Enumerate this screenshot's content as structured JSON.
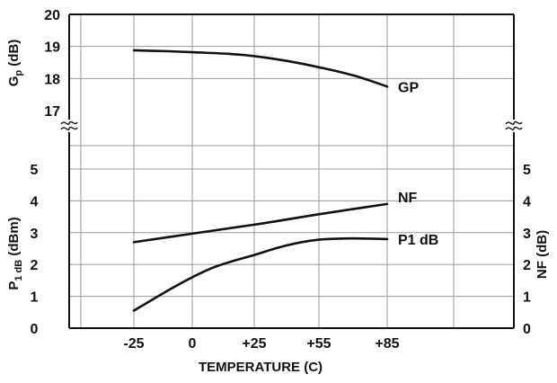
{
  "chart_data": {
    "type": "line",
    "x": [
      "-25",
      "0",
      "+25",
      "+55",
      "+85"
    ],
    "x_values": [
      -25,
      0,
      25,
      55,
      85
    ],
    "xlabel": "TEMPERATURE (C)",
    "grid": true,
    "panels": [
      {
        "id": "gain",
        "ylabel": "G_p (dB)",
        "ylabel_main": "G",
        "ylabel_sub": "p",
        "ylabel_rest": " (dB)",
        "ylim": [
          17,
          20
        ],
        "yticks": [
          "20",
          "19",
          "18",
          "17"
        ],
        "axis_break": true,
        "series": [
          {
            "name": "GP",
            "x": [
              -25,
              -10,
              0,
              15,
              25,
              40,
              55,
              70,
              85
            ],
            "y": [
              18.88,
              18.85,
              18.82,
              18.77,
              18.7,
              18.55,
              18.35,
              18.1,
              17.75
            ]
          }
        ]
      },
      {
        "id": "power-noise",
        "ylabel_left": "P_1dB (dBm)",
        "ylabel_left_main": "P",
        "ylabel_left_sub": "1 dB",
        "ylabel_left_rest": " (dBm)",
        "ylabel_right": "NF (dB)",
        "ylim": [
          0,
          5
        ],
        "yticks_left": [
          "0",
          "1",
          "2",
          "3",
          "4",
          "5"
        ],
        "yticks_right": [
          "0",
          "1",
          "2",
          "3",
          "4",
          "5"
        ],
        "series": [
          {
            "name": "NF",
            "axis": "right",
            "x": [
              -25,
              0,
              25,
              55,
              85
            ],
            "y": [
              2.7,
              2.97,
              3.25,
              3.58,
              3.9
            ]
          },
          {
            "name": "P1 dB",
            "axis": "left",
            "x": [
              -25,
              -10,
              0,
              10,
              25,
              40,
              55,
              70,
              85
            ],
            "y": [
              0.55,
              1.2,
              1.6,
              1.95,
              2.3,
              2.6,
              2.78,
              2.82,
              2.8
            ]
          }
        ]
      }
    ]
  }
}
